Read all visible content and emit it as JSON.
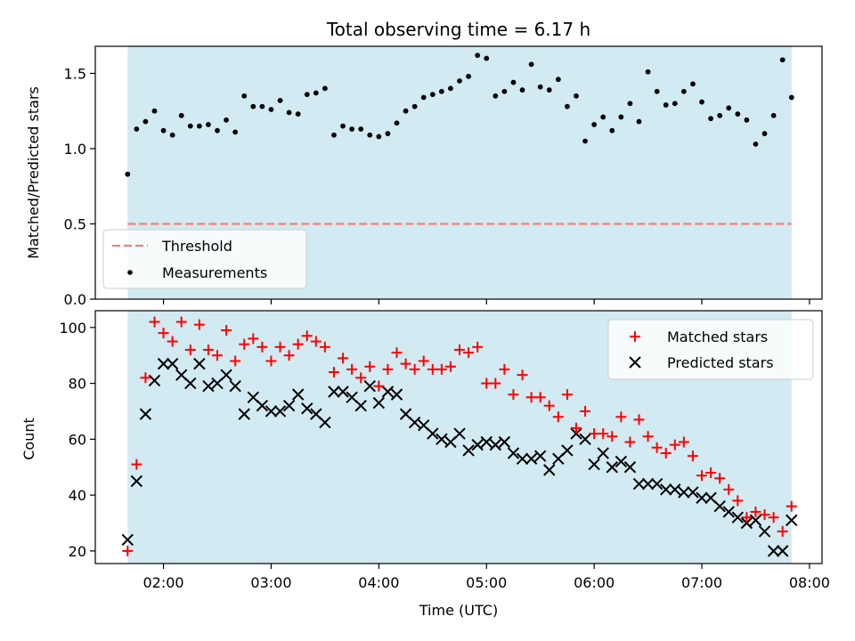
{
  "chart_data": [
    {
      "type": "scatter",
      "title": "Total observing time = 6.17 h",
      "ylabel": "Matched/Predicted stars",
      "ylim": [
        0,
        1.68
      ],
      "yticks": [
        0.0,
        0.5,
        1.0,
        1.5
      ],
      "ytick_labels": [
        "0.0",
        "0.5",
        "1.0",
        "1.5"
      ],
      "xlim": [
        "01:22",
        "08:07"
      ],
      "shaded_span": [
        "01:40",
        "07:50"
      ],
      "shade_color": "#add8e6",
      "threshold": {
        "name": "Threshold",
        "value": 0.5,
        "range": [
          "01:40",
          "07:50"
        ],
        "color": "#f08080"
      },
      "legend_position": "lower-left",
      "series": [
        {
          "name": "Measurements",
          "color": "#000000",
          "marker": "dot",
          "x": [
            "01:40",
            "01:45",
            "01:50",
            "01:55",
            "02:00",
            "02:05",
            "02:10",
            "02:15",
            "02:20",
            "02:25",
            "02:30",
            "02:35",
            "02:40",
            "02:45",
            "02:50",
            "02:55",
            "03:00",
            "03:05",
            "03:10",
            "03:15",
            "03:20",
            "03:25",
            "03:30",
            "03:35",
            "03:40",
            "03:45",
            "03:50",
            "03:55",
            "04:00",
            "04:05",
            "04:10",
            "04:15",
            "04:20",
            "04:25",
            "04:30",
            "04:35",
            "04:40",
            "04:45",
            "04:50",
            "04:55",
            "05:00",
            "05:05",
            "05:10",
            "05:15",
            "05:20",
            "05:25",
            "05:30",
            "05:35",
            "05:40",
            "05:45",
            "05:50",
            "05:55",
            "06:00",
            "06:05",
            "06:10",
            "06:15",
            "06:20",
            "06:25",
            "06:30",
            "06:35",
            "06:40",
            "06:45",
            "06:50",
            "06:55",
            "07:00",
            "07:05",
            "07:10",
            "07:15",
            "07:20",
            "07:25",
            "07:30",
            "07:35",
            "07:40",
            "07:45",
            "07:50"
          ],
          "values": [
            0.83,
            1.13,
            1.18,
            1.25,
            1.12,
            1.09,
            1.22,
            1.15,
            1.15,
            1.16,
            1.12,
            1.19,
            1.11,
            1.35,
            1.28,
            1.28,
            1.26,
            1.32,
            1.24,
            1.23,
            1.36,
            1.37,
            1.4,
            1.09,
            1.15,
            1.13,
            1.13,
            1.09,
            1.08,
            1.1,
            1.17,
            1.25,
            1.28,
            1.34,
            1.36,
            1.38,
            1.4,
            1.45,
            1.48,
            1.62,
            1.6,
            1.35,
            1.38,
            1.44,
            1.39,
            1.56,
            1.41,
            1.39,
            1.46,
            1.28,
            1.35,
            1.05,
            1.16,
            1.21,
            1.12,
            1.21,
            1.3,
            1.18,
            1.51,
            1.38,
            1.29,
            1.3,
            1.38,
            1.43,
            1.31,
            1.2,
            1.22,
            1.27,
            1.23,
            1.19,
            1.03,
            1.1,
            1.22,
            1.59,
            1.34
          ]
        }
      ]
    },
    {
      "type": "scatter",
      "xlabel": "Time (UTC)",
      "ylabel": "Count",
      "ylim": [
        15.5,
        106
      ],
      "yticks": [
        20,
        40,
        60,
        80,
        100
      ],
      "ytick_labels": [
        "20",
        "40",
        "60",
        "80",
        "100"
      ],
      "xlim": [
        "01:22",
        "08:07"
      ],
      "xticks": [
        "02:00",
        "03:00",
        "04:00",
        "05:00",
        "06:00",
        "07:00",
        "08:00"
      ],
      "xtick_labels": [
        "02:00",
        "03:00",
        "04:00",
        "05:00",
        "06:00",
        "07:00",
        "08:00"
      ],
      "shaded_span": [
        "01:40",
        "07:50"
      ],
      "shade_color": "#add8e6",
      "legend_position": "upper-right",
      "series": [
        {
          "name": "Matched stars",
          "color": "#ff0000",
          "marker": "plus",
          "x": [
            "01:40",
            "01:45",
            "01:50",
            "01:55",
            "02:00",
            "02:05",
            "02:10",
            "02:15",
            "02:20",
            "02:25",
            "02:30",
            "02:35",
            "02:40",
            "02:45",
            "02:50",
            "02:55",
            "03:00",
            "03:05",
            "03:10",
            "03:15",
            "03:20",
            "03:25",
            "03:30",
            "03:35",
            "03:40",
            "03:45",
            "03:50",
            "03:55",
            "04:00",
            "04:05",
            "04:10",
            "04:15",
            "04:20",
            "04:25",
            "04:30",
            "04:35",
            "04:40",
            "04:45",
            "04:50",
            "04:55",
            "05:00",
            "05:05",
            "05:10",
            "05:15",
            "05:20",
            "05:25",
            "05:30",
            "05:35",
            "05:40",
            "05:45",
            "05:50",
            "05:55",
            "06:00",
            "06:05",
            "06:10",
            "06:15",
            "06:20",
            "06:25",
            "06:30",
            "06:35",
            "06:40",
            "06:45",
            "06:50",
            "06:55",
            "07:00",
            "07:05",
            "07:10",
            "07:15",
            "07:20",
            "07:25",
            "07:30",
            "07:35",
            "07:40",
            "07:45",
            "07:50"
          ],
          "values": [
            20,
            51,
            82,
            102,
            98,
            95,
            102,
            92,
            101,
            92,
            90,
            99,
            88,
            94,
            96,
            93,
            88,
            93,
            90,
            94,
            97,
            95,
            93,
            84,
            89,
            85,
            82,
            86,
            79,
            85,
            91,
            87,
            85,
            88,
            85,
            85,
            86,
            92,
            91,
            93,
            80,
            80,
            85,
            76,
            83,
            75,
            75,
            72,
            68,
            76,
            64,
            70,
            62,
            62,
            61,
            68,
            59,
            67,
            61,
            57,
            55,
            58,
            59,
            54,
            47,
            48,
            46,
            42,
            38,
            32,
            34,
            33,
            32,
            27,
            36
          ]
        },
        {
          "name": "Predicted stars",
          "color": "#000000",
          "marker": "x",
          "x": [
            "01:40",
            "01:45",
            "01:50",
            "01:55",
            "02:00",
            "02:05",
            "02:10",
            "02:15",
            "02:20",
            "02:25",
            "02:30",
            "02:35",
            "02:40",
            "02:45",
            "02:50",
            "02:55",
            "03:00",
            "03:05",
            "03:10",
            "03:15",
            "03:20",
            "03:25",
            "03:30",
            "03:35",
            "03:40",
            "03:45",
            "03:50",
            "03:55",
            "04:00",
            "04:05",
            "04:10",
            "04:15",
            "04:20",
            "04:25",
            "04:30",
            "04:35",
            "04:40",
            "04:45",
            "04:50",
            "04:55",
            "05:00",
            "05:05",
            "05:10",
            "05:15",
            "05:20",
            "05:25",
            "05:30",
            "05:35",
            "05:40",
            "05:45",
            "05:50",
            "05:55",
            "06:00",
            "06:05",
            "06:10",
            "06:15",
            "06:20",
            "06:25",
            "06:30",
            "06:35",
            "06:40",
            "06:45",
            "06:50",
            "06:55",
            "07:00",
            "07:05",
            "07:10",
            "07:15",
            "07:20",
            "07:25",
            "07:30",
            "07:35",
            "07:40",
            "07:45",
            "07:50"
          ],
          "values": [
            24,
            45,
            69,
            81,
            87,
            87,
            83,
            80,
            87,
            79,
            80,
            83,
            79,
            69,
            75,
            72,
            70,
            70,
            72,
            76,
            71,
            69,
            66,
            77,
            77,
            75,
            72,
            79,
            73,
            77,
            76,
            69,
            66,
            65,
            62,
            60,
            59,
            62,
            56,
            58,
            59,
            58,
            59,
            55,
            53,
            53,
            54,
            49,
            53,
            56,
            62,
            60,
            51,
            55,
            50,
            52,
            50,
            44,
            44,
            44,
            42,
            42,
            41,
            41,
            39,
            39,
            36,
            34,
            32,
            30,
            31,
            27,
            20,
            20,
            31
          ]
        }
      ]
    }
  ]
}
